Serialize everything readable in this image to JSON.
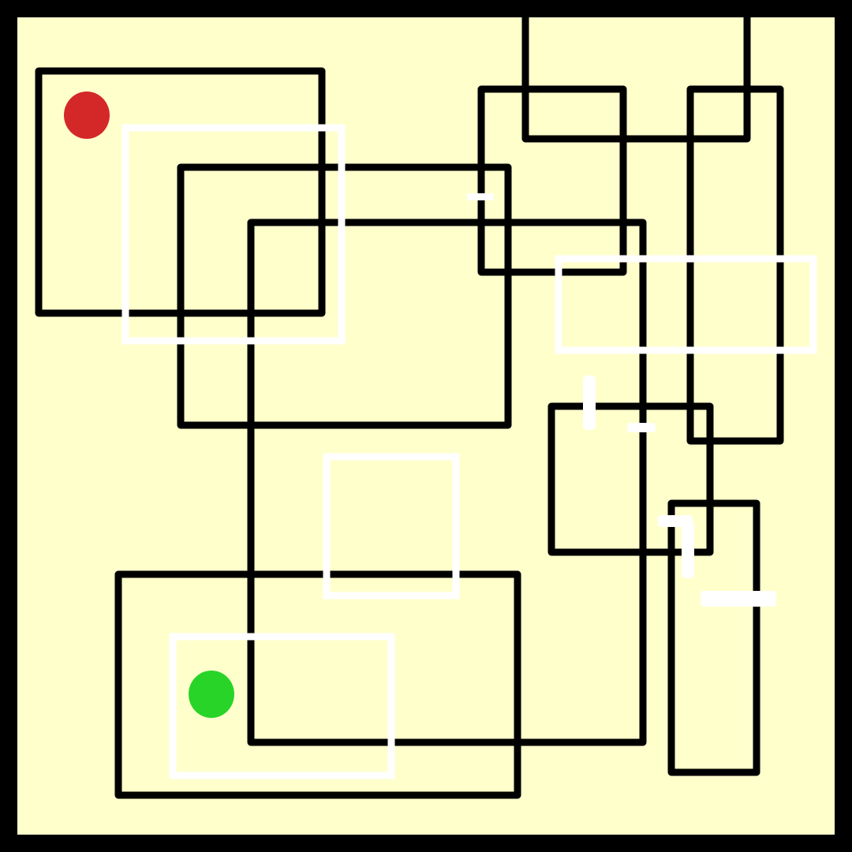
{
  "colors": {
    "background": "#ffffcc",
    "frame": "#000000",
    "wall": "#000000",
    "open_wall": "#ffffff",
    "start_marker": "#d42828",
    "goal_marker": "#28d428"
  },
  "markers": [
    {
      "role": "start",
      "color": "#d42828"
    },
    {
      "role": "goal",
      "color": "#28d428"
    }
  ]
}
